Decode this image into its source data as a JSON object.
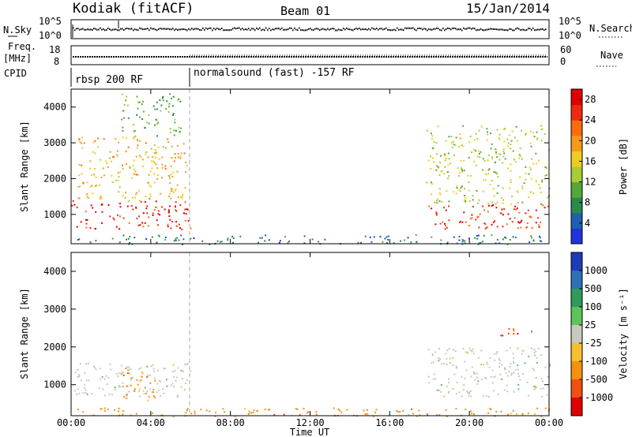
{
  "header": {
    "site": "Kodiak (fitACF)",
    "beam": "Beam 01",
    "date": "15/Jan/2014"
  },
  "top_panels": {
    "nsky": {
      "left_label": "N.Sky",
      "right_label": "N.Search",
      "left_ticks": [
        "10^5",
        "10^0"
      ],
      "right_ticks": [
        "10^5",
        "10^0"
      ]
    },
    "freq": {
      "left_label_line1": "Freq.",
      "left_label_line2": "[MHz]",
      "left_ticks": [
        "18",
        "8"
      ],
      "right_ticks": [
        "60",
        "0"
      ],
      "right_label": "Nave"
    },
    "cpid": {
      "label": "CPID",
      "segments": [
        {
          "label": "rbsp 200 RF",
          "start_hour": 0,
          "end_hour": 6
        },
        {
          "label": "normalsound (fast) -157 RF",
          "start_hour": 6,
          "end_hour": 24
        }
      ]
    }
  },
  "chart_data": [
    {
      "type": "heatmap",
      "title": "",
      "quantity": "Power",
      "ylabel": "Slant Range [km]",
      "xlabel": "Time UT",
      "xlim_hours": [
        0,
        24
      ],
      "ylim_km": [
        180,
        4500
      ],
      "ytick_labels": [
        "1000",
        "2000",
        "3000",
        "4000"
      ],
      "xtick_labels": [
        "00:00",
        "04:00",
        "08:00",
        "12:00",
        "16:00",
        "20:00",
        "00:00"
      ],
      "colorbar": {
        "label": "Power [dB]",
        "tick_labels": [
          "4",
          "8",
          "12",
          "16",
          "20",
          "24",
          "28"
        ],
        "range": [
          0,
          30
        ],
        "colors": [
          "#2233dd",
          "#1f5fb0",
          "#2a8a4a",
          "#52a83a",
          "#a8cc33",
          "#eecc22",
          "#f59a1a",
          "#ff6a10",
          "#f02a10",
          "#e00000"
        ]
      },
      "regions": [
        {
          "t0": 0.0,
          "t1": 6.0,
          "r0": 600,
          "r1": 1400,
          "value": 27
        },
        {
          "t0": 0.3,
          "t1": 5.8,
          "r0": 1400,
          "r1": 3200,
          "value": 18
        },
        {
          "t0": 2.5,
          "t1": 5.5,
          "r0": 3200,
          "r1": 4400,
          "value": 10
        },
        {
          "t0": 0.3,
          "t1": 24.0,
          "r0": 180,
          "r1": 450,
          "value": 6
        },
        {
          "t0": 17.8,
          "t1": 24.0,
          "r0": 600,
          "r1": 1300,
          "value": 26
        },
        {
          "t0": 17.8,
          "t1": 24.0,
          "r0": 1300,
          "r1": 3500,
          "value": 14
        }
      ]
    },
    {
      "type": "heatmap",
      "title": "",
      "quantity": "Velocity",
      "ylabel": "Slant Range [km]",
      "xlabel": "Time UT",
      "xlim_hours": [
        0,
        24
      ],
      "ylim_km": [
        180,
        4500
      ],
      "ytick_labels": [
        "1000",
        "2000",
        "3000",
        "4000"
      ],
      "xtick_labels": [
        "00:00",
        "04:00",
        "08:00",
        "12:00",
        "16:00",
        "20:00",
        "00:00"
      ],
      "colorbar": {
        "label": "Velocity [m s⁻¹]",
        "tick_labels": [
          "1000",
          "500",
          "100",
          "25",
          "-25",
          "-100",
          "-500",
          "-1000"
        ],
        "colors": [
          "#1f3cb8",
          "#2f6fb5",
          "#2f9a5a",
          "#5fc25a",
          "#c8c8bc",
          "#f5bf30",
          "#f59010",
          "#f05010",
          "#e00000"
        ]
      },
      "regions": [
        {
          "t0": 0.0,
          "t1": 6.0,
          "r0": 700,
          "r1": 1600,
          "value_label": "25 to -25 (ground scatter)"
        },
        {
          "t0": 2.5,
          "t1": 4.2,
          "r0": 600,
          "r1": 1500,
          "value_label": "-100"
        },
        {
          "t0": 17.8,
          "t1": 24.0,
          "r0": 700,
          "r1": 2000,
          "value_label": "25 to -25 (ground scatter)"
        },
        {
          "t0": 21.5,
          "t1": 23.5,
          "r0": 2300,
          "r1": 2500,
          "value_label": "-500"
        },
        {
          "t0": 0.3,
          "t1": 24.0,
          "r0": 180,
          "r1": 400,
          "value_label": "-100"
        }
      ]
    }
  ]
}
